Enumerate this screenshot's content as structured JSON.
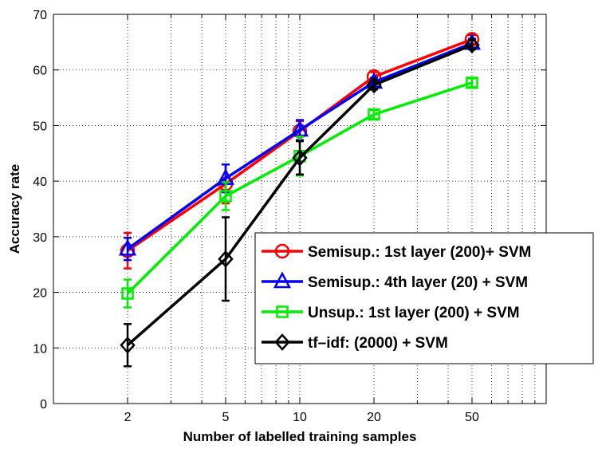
{
  "chart_data": {
    "type": "line",
    "xlabel": "Number of labelled training samples",
    "ylabel": "Accuracy rate",
    "xscale": "log",
    "xlim": [
      1,
      100
    ],
    "ylim": [
      0,
      70
    ],
    "xticks": [
      2,
      5,
      10,
      20,
      50
    ],
    "yticks": [
      0,
      10,
      20,
      30,
      40,
      50,
      60,
      70
    ],
    "grid": "dotted",
    "legend_position": "lower-right",
    "x": [
      2,
      5,
      10,
      20,
      50
    ],
    "series": [
      {
        "name": "Semisup.: 1st layer (200)+ SVM",
        "color": "#ff0000",
        "marker": "circle",
        "values": [
          27.5,
          39.5,
          49.0,
          58.8,
          65.5
        ],
        "errors": [
          3.2,
          3.5,
          1.8,
          0.8,
          0.8
        ]
      },
      {
        "name": "Semisup.: 4th layer (20) + SVM",
        "color": "#0000ff",
        "marker": "triangle",
        "values": [
          27.8,
          40.5,
          49.2,
          57.8,
          64.8
        ],
        "errors": [
          2.0,
          2.5,
          1.8,
          0.8,
          0.8
        ]
      },
      {
        "name": "Unsup.: 1st layer (200) + SVM",
        "color": "#00ee00",
        "marker": "square",
        "values": [
          19.8,
          37.3,
          44.5,
          52.0,
          57.7
        ],
        "errors": [
          2.5,
          2.5,
          3.5,
          0.8,
          0.8
        ]
      },
      {
        "name": "tf–idf: (2000) + SVM",
        "color": "#000000",
        "marker": "diamond",
        "values": [
          10.5,
          26.0,
          44.2,
          57.3,
          64.5
        ],
        "errors": [
          3.8,
          7.5,
          3.0,
          0.8,
          0.8
        ]
      }
    ]
  }
}
